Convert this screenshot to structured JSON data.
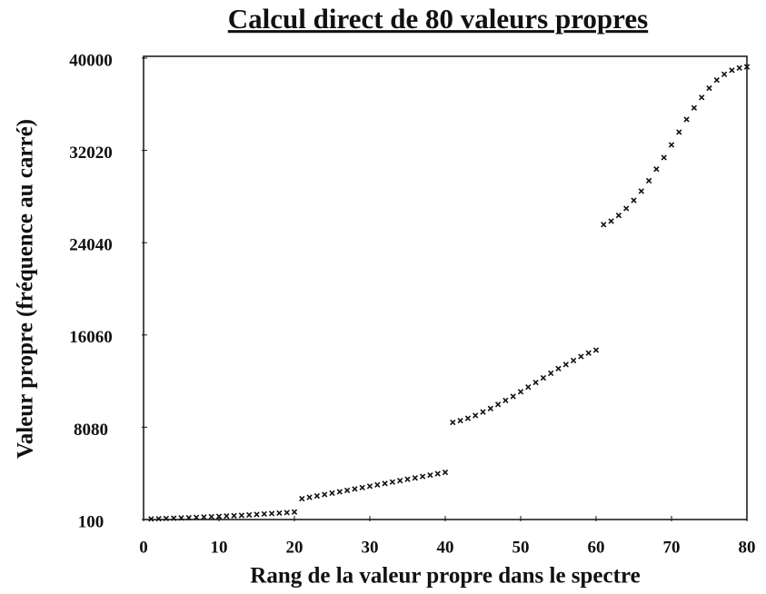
{
  "chart_data": {
    "type": "scatter",
    "title": "Calcul direct de 80 valeurs propres",
    "x_label": "Rang de la valeur propre dans le spectre",
    "y_label": "Valeur propre (fréquence au carré)",
    "color": "#111111",
    "xlim": [
      0,
      80
    ],
    "xticks": [
      0,
      10,
      20,
      30,
      40,
      50,
      60,
      70,
      80
    ],
    "ylim": [
      100,
      40000
    ],
    "yticks": [
      100,
      8080,
      16060,
      24040,
      32020,
      40000
    ],
    "x": [
      1,
      2,
      3,
      4,
      5,
      6,
      7,
      8,
      9,
      10,
      11,
      12,
      13,
      14,
      15,
      16,
      17,
      18,
      19,
      20,
      21,
      22,
      23,
      24,
      25,
      26,
      27,
      28,
      29,
      30,
      31,
      32,
      33,
      34,
      35,
      36,
      37,
      38,
      39,
      40,
      41,
      42,
      43,
      44,
      45,
      46,
      47,
      48,
      49,
      50,
      51,
      52,
      53,
      54,
      55,
      56,
      57,
      58,
      59,
      60,
      61,
      62,
      63,
      64,
      65,
      66,
      67,
      68,
      69,
      70,
      71,
      72,
      73,
      74,
      75,
      76,
      77,
      78,
      79,
      80
    ],
    "values": [
      150,
      170,
      190,
      210,
      230,
      250,
      280,
      310,
      340,
      370,
      400,
      430,
      460,
      500,
      540,
      580,
      620,
      660,
      700,
      750,
      1900,
      2020,
      2140,
      2260,
      2380,
      2500,
      2620,
      2740,
      2860,
      2980,
      3100,
      3220,
      3340,
      3460,
      3580,
      3700,
      3820,
      3940,
      4060,
      4180,
      8500,
      8650,
      8850,
      9100,
      9400,
      9700,
      10050,
      10400,
      10750,
      11150,
      11550,
      11950,
      12350,
      12750,
      13150,
      13500,
      13850,
      14200,
      14500,
      14750,
      25600,
      25900,
      26400,
      27000,
      27700,
      28500,
      29400,
      30400,
      31400,
      32500,
      33600,
      34700,
      35700,
      36600,
      37400,
      38100,
      38600,
      38950,
      39150,
      39250
    ]
  }
}
